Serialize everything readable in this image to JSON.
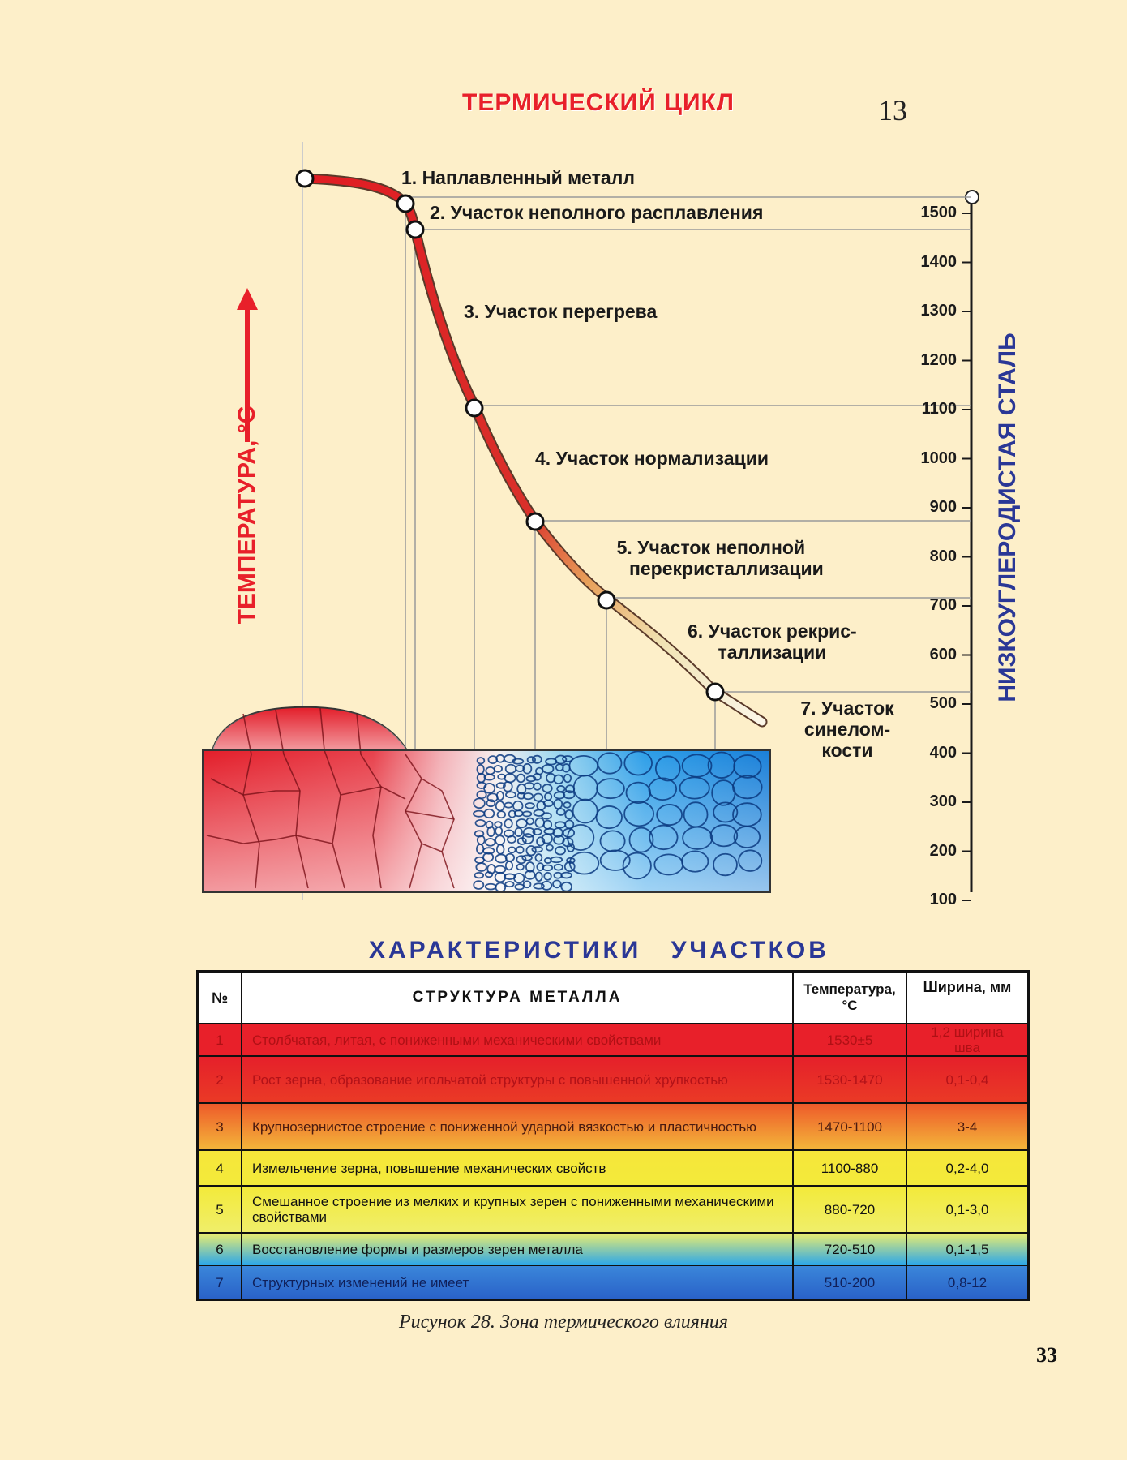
{
  "header": {
    "title": "ТЕРМИЧЕСКИЙ ЦИКЛ",
    "figure_number": "13"
  },
  "axes": {
    "left_label": "ТЕМПЕРАТУРА, °С",
    "right_label": "НИЗКОУГЛЕРОДИСТАЯ СТАЛЬ",
    "ticks": [
      "1500",
      "1400",
      "1300",
      "1200",
      "1100",
      "1000",
      "900",
      "800",
      "700",
      "600",
      "500",
      "400",
      "300",
      "200",
      "100"
    ]
  },
  "zones": [
    {
      "lines": [
        "1. Наплавленный металл"
      ]
    },
    {
      "lines": [
        "2. Участок неполного расплавления"
      ]
    },
    {
      "lines": [
        "3. Участок перегрева"
      ]
    },
    {
      "lines": [
        "4. Участок нормализации"
      ]
    },
    {
      "lines": [
        "5. Участок неполной",
        "перекристаллизации"
      ]
    },
    {
      "lines": [
        "6. Участок рекрис-",
        "таллизации"
      ]
    },
    {
      "lines": [
        "7. Участок",
        "синелом-",
        "кости"
      ]
    }
  ],
  "table": {
    "section_title": "ХАРАКТЕРИСТИКИ УЧАСТКОВ",
    "headers": {
      "num": "№",
      "structure": "СТРУКТУРА МЕТАЛЛА",
      "temp_line1": "Температура,",
      "temp_line2": "°С",
      "width": "Ширина, мм"
    },
    "rows": [
      {
        "num": "1",
        "structure": "Столбчатая, литая, с пониженными механическими свойствами",
        "temp": "1530±5",
        "width": "1,2 ширина шва"
      },
      {
        "num": "2",
        "structure": "Рост зерна, образование игольчатой структуры с повышенной хрупкостью",
        "temp": "1530-1470",
        "width": "0,1-0,4"
      },
      {
        "num": "3",
        "structure": "Крупнозернистое строение с пониженной ударной вязкостью и пластичностью",
        "temp": "1470-1100",
        "width": "3-4"
      },
      {
        "num": "4",
        "structure": "Измельчение  зерна, повышение механических свойств",
        "temp": "1100-880",
        "width": "0,2-4,0"
      },
      {
        "num": "5",
        "structure": "Смешанное строение из мелких и крупных зерен с пониженными механическими свойствами",
        "temp": "880-720",
        "width": "0,1-3,0"
      },
      {
        "num": "6",
        "structure": "Восстановление формы и размеров зерен металла",
        "temp": "720-510",
        "width": "0,1-1,5"
      },
      {
        "num": "7",
        "structure": "Структурных изменений не имеет",
        "temp": "510-200",
        "width": "0,8-12"
      }
    ],
    "row_colors": [
      "#e8202a",
      "#e52028",
      "#f07a2a",
      "#f3e83a",
      "#f3ea3a",
      "#3fb0e0",
      "#2f6fd0"
    ],
    "row_text_colors": [
      "#b01015",
      "#b21218",
      "#4a1a10",
      "#111111",
      "#111111",
      "#111111",
      "#10205a"
    ]
  },
  "caption": "Рисунок 28. Зона термического влияния",
  "page_number": "33"
}
